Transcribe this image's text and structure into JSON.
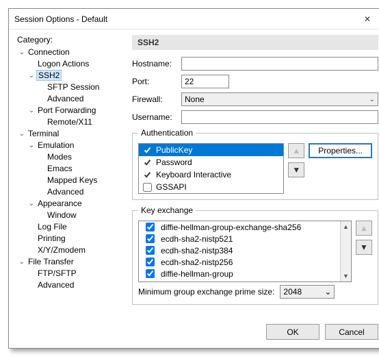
{
  "window": {
    "title": "Session Options - Default",
    "close_glyph": "✕"
  },
  "category_label": "Category:",
  "tree": {
    "connection": {
      "label": "Connection",
      "logon_actions": "Logon Actions",
      "ssh2": {
        "label": "SSH2",
        "sftp_session": "SFTP Session",
        "advanced": "Advanced"
      },
      "port_forwarding": {
        "label": "Port Forwarding",
        "remote_x11": "Remote/X11"
      }
    },
    "terminal": {
      "label": "Terminal",
      "emulation": {
        "label": "Emulation",
        "modes": "Modes",
        "emacs": "Emacs",
        "mapped_keys": "Mapped Keys",
        "advanced": "Advanced"
      },
      "appearance": {
        "label": "Appearance",
        "window": "Window"
      },
      "log_file": "Log File",
      "printing": "Printing",
      "xyzmodem": "X/Y/Zmodem"
    },
    "file_transfer": {
      "label": "File Transfer",
      "ftp_sftp": "FTP/SFTP",
      "advanced": "Advanced"
    }
  },
  "panel": {
    "title": "SSH2",
    "hostname_label": "Hostname:",
    "hostname_value": "",
    "port_label": "Port:",
    "port_value": "22",
    "firewall_label": "Firewall:",
    "firewall_value": "None",
    "username_label": "Username:",
    "username_value": ""
  },
  "auth": {
    "legend": "Authentication",
    "items": [
      {
        "label": "PublicKey",
        "checked": true,
        "selected": true
      },
      {
        "label": "Password",
        "checked": true,
        "selected": false
      },
      {
        "label": "Keyboard Interactive",
        "checked": true,
        "selected": false
      },
      {
        "label": "GSSAPI",
        "checked": false,
        "selected": false
      }
    ],
    "properties_label": "Properties...",
    "up_glyph": "▲",
    "down_glyph": "▼"
  },
  "kex": {
    "legend": "Key exchange",
    "items": [
      {
        "label": "diffie-hellman-group-exchange-sha256",
        "checked": true
      },
      {
        "label": "ecdh-sha2-nistp521",
        "checked": true
      },
      {
        "label": "ecdh-sha2-nistp384",
        "checked": true
      },
      {
        "label": "ecdh-sha2-nistp256",
        "checked": true
      },
      {
        "label": "diffie-hellman-group",
        "checked": true
      }
    ],
    "up_glyph": "▲",
    "down_glyph": "▼",
    "min_label": "Minimum group exchange prime size:",
    "min_value": "2048"
  },
  "footer": {
    "ok": "OK",
    "cancel": "Cancel"
  },
  "chevron_down": "⌄"
}
